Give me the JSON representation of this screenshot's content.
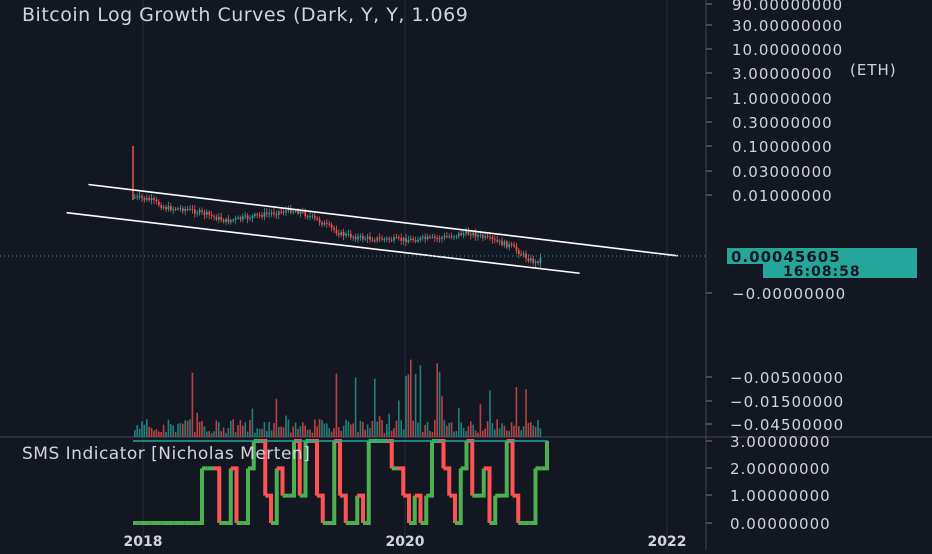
{
  "header": {
    "title": "Bitcoin Log Growth Curves (Dark, Y, Y, 1.069",
    "sms_title": "SMS Indicator [Nicholas Merten]",
    "eth_label": "(ETH)"
  },
  "last_price": {
    "value_label": "0.00045605",
    "countdown_label": "16:08:58",
    "color": "#26a69a"
  },
  "colors": {
    "background": "#131722",
    "grid": "#2a2e39",
    "axis_text": "#d1d4dc",
    "up": "#26a69a",
    "down": "#ef5350",
    "sms_up": "#4caf50",
    "sms_down": "#ff5252",
    "channel": "#ffffff"
  },
  "chart_data": [
    {
      "type": "candlestick",
      "title": "Bitcoin Log Growth Curves (Dark, Y, Y, 1.069",
      "scale": "log",
      "price_axis_labels": [
        "90.00000000",
        "30.00000000",
        "10.00000000",
        "3.00000000",
        "1.00000000",
        "0.30000000",
        "0.10000000",
        "0.03000000",
        "0.01000000",
        "−0.00000000"
      ],
      "time_axis_labels": [
        "2018",
        "2020",
        "2022"
      ],
      "last_value": 0.00045605,
      "channel_lines": [
        {
          "name": "upper",
          "start": [
            "2017-08",
            0.0165
          ],
          "end": [
            "2022-02",
            0.00055
          ]
        },
        {
          "name": "lower",
          "start": [
            "2017-06",
            0.0043
          ],
          "end": [
            "2021-05",
            0.00024
          ]
        }
      ],
      "grid": true
    },
    {
      "type": "bar",
      "series_desc": "volume",
      "price_axis_labels": [
        "−0.00500000",
        "−0.01500000",
        "−0.04500000"
      ]
    },
    {
      "type": "line",
      "title": "SMS Indicator [Nicholas Merten]",
      "price_axis_labels": [
        "3.00000000",
        "2.00000000",
        "1.00000000",
        "0.00000000"
      ],
      "ylim": [
        0,
        3
      ],
      "values": [
        0,
        0,
        0,
        0,
        0,
        0,
        0,
        0,
        0,
        0,
        0,
        0,
        2,
        2,
        2,
        0,
        0,
        2,
        0,
        0,
        2,
        3,
        3,
        1,
        0,
        2,
        1,
        1,
        3,
        1,
        3,
        3,
        1,
        0,
        0,
        3,
        1,
        0,
        0,
        1,
        0,
        3,
        3,
        3,
        3,
        2,
        2,
        1,
        0,
        1,
        0,
        1,
        3,
        3,
        2,
        1,
        0,
        2,
        3,
        1,
        1,
        2,
        0,
        1,
        1,
        3,
        1,
        0,
        0,
        0,
        2,
        2,
        3
      ],
      "up_color": "#4caf50",
      "down_color": "#ff5252"
    }
  ]
}
